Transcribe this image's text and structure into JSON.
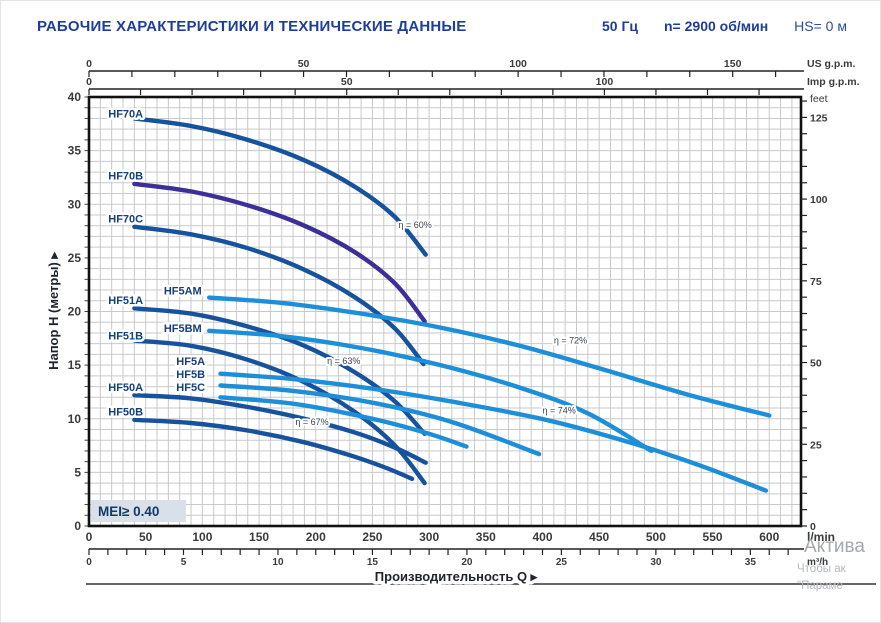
{
  "header": {
    "title": "РАБОЧИЕ ХАРАКТЕРИСТИКИ И ТЕХНИЧЕСКИЕ ДАННЫЕ",
    "frequency": "50 Гц",
    "speed": "n= 2900 об/мин",
    "suction": "HS= 0 м"
  },
  "watermark": {
    "line1": "Актива",
    "line2": "Чтобы ак",
    "line3": "\"Параме"
  },
  "chart_data": {
    "type": "line",
    "title": "",
    "xlabel": "Производительность Q",
    "ylabel": "Напор H (метры)",
    "arrow_glyph": "▸",
    "xlim": [
      0,
      628
    ],
    "ylim": [
      0,
      40
    ],
    "grid": {
      "x_step_lpm": 10,
      "y_step_m": 1
    },
    "x_primary": {
      "unit": "l/min",
      "labeled_ticks": [
        0,
        50,
        100,
        150,
        200,
        250,
        300,
        350,
        400,
        450,
        500,
        550,
        600
      ]
    },
    "y_primary": {
      "labeled_ticks": [
        0,
        5,
        10,
        15,
        20,
        25,
        30,
        35,
        40
      ]
    },
    "secondary_axes": {
      "us_gpm": {
        "unit": "US g.p.m.",
        "lpm_per_unit": 3.785,
        "labeled": [
          0,
          50,
          100,
          150
        ],
        "minor_step": 10
      },
      "imp_gpm": {
        "unit": "Imp g.p.m.",
        "lpm_per_unit": 4.546,
        "labeled": [
          0,
          50,
          100
        ],
        "minor_step": 10
      },
      "feet": {
        "unit": "feet",
        "m_per_unit": 0.3048,
        "labeled": [
          0,
          25,
          50,
          75,
          100,
          125
        ],
        "minor_step": 5
      },
      "m3_h": {
        "unit": "m³/h",
        "lpm_per_unit": 16.6667,
        "labeled": [
          0,
          5,
          10,
          15,
          20,
          25,
          30,
          35
        ],
        "minor_step": 1
      }
    },
    "mei_label": "MEI≥ 0.40",
    "colors": {
      "navy": "#16539c",
      "purple": "#3c2f97",
      "light": "#1d8fd8",
      "grid": "#c9c9c9",
      "border": "#111111",
      "tick_text": "#3b3b3b",
      "label_text": "#14407e",
      "eff_text": "#3a4254",
      "axis_title": "#20242e",
      "mei_bg": "#d9e0e9",
      "mei_text": "#123a66"
    },
    "series": [
      {
        "name": "HF70A",
        "color_key": "navy",
        "label_q": 17,
        "label_h": 38.1,
        "points": [
          [
            40,
            38.0
          ],
          [
            90,
            37.3
          ],
          [
            140,
            36.0
          ],
          [
            190,
            34.1
          ],
          [
            235,
            31.6
          ],
          [
            270,
            28.8
          ],
          [
            297,
            25.3
          ]
        ]
      },
      {
        "name": "HF70B",
        "color_key": "purple",
        "label_q": 17,
        "label_h": 32.3,
        "points": [
          [
            40,
            31.9
          ],
          [
            90,
            31.2
          ],
          [
            140,
            29.9
          ],
          [
            190,
            28.0
          ],
          [
            235,
            25.5
          ],
          [
            270,
            22.6
          ],
          [
            296,
            19.1
          ]
        ]
      },
      {
        "name": "HF70C",
        "color_key": "navy",
        "label_q": 17,
        "label_h": 28.3,
        "points": [
          [
            40,
            27.9
          ],
          [
            90,
            27.2
          ],
          [
            140,
            25.9
          ],
          [
            190,
            23.9
          ],
          [
            235,
            21.3
          ],
          [
            270,
            18.4
          ],
          [
            295,
            15.1
          ]
        ]
      },
      {
        "name": "HF5AM",
        "color_key": "light",
        "label_q": 66,
        "label_h": 21.6,
        "points": [
          [
            106,
            21.3
          ],
          [
            170,
            20.8
          ],
          [
            240,
            19.8
          ],
          [
            310,
            18.5
          ],
          [
            380,
            16.8
          ],
          [
            450,
            14.7
          ],
          [
            530,
            12.2
          ],
          [
            600,
            10.3
          ]
        ]
      },
      {
        "name": "HF51A",
        "color_key": "navy",
        "label_q": 17,
        "label_h": 20.7,
        "points": [
          [
            40,
            20.3
          ],
          [
            90,
            19.8
          ],
          [
            140,
            18.6
          ],
          [
            190,
            16.8
          ],
          [
            235,
            14.3
          ],
          [
            270,
            11.6
          ],
          [
            296,
            8.6
          ]
        ]
      },
      {
        "name": "HF5BM",
        "color_key": "light",
        "label_q": 66,
        "label_h": 18.1,
        "points": [
          [
            106,
            18.2
          ],
          [
            170,
            17.7
          ],
          [
            240,
            16.6
          ],
          [
            310,
            15.0
          ],
          [
            380,
            12.9
          ],
          [
            440,
            10.5
          ],
          [
            496,
            7.0
          ]
        ]
      },
      {
        "name": "HF51B",
        "color_key": "navy",
        "label_q": 17,
        "label_h": 17.4,
        "points": [
          [
            40,
            17.3
          ],
          [
            90,
            16.8
          ],
          [
            140,
            15.5
          ],
          [
            190,
            13.4
          ],
          [
            235,
            10.6
          ],
          [
            270,
            7.5
          ],
          [
            296,
            4.0
          ]
        ]
      },
      {
        "name": "HF5A",
        "color_key": "light",
        "label_q": 77,
        "label_h": 15.0,
        "points": [
          [
            116,
            14.2
          ],
          [
            180,
            13.7
          ],
          [
            250,
            12.8
          ],
          [
            320,
            11.6
          ],
          [
            403,
            9.9
          ],
          [
            480,
            7.7
          ],
          [
            540,
            5.6
          ],
          [
            597,
            3.3
          ]
        ]
      },
      {
        "name": "HF5B",
        "color_key": "light",
        "label_q": 77,
        "label_h": 13.8,
        "points": [
          [
            116,
            13.1
          ],
          [
            180,
            12.6
          ],
          [
            250,
            11.5
          ],
          [
            320,
            9.7
          ],
          [
            397,
            6.7
          ]
        ]
      },
      {
        "name": "HF50A",
        "color_key": "navy",
        "label_q": 17,
        "label_h": 12.6,
        "points": [
          [
            40,
            12.2
          ],
          [
            90,
            11.9
          ],
          [
            140,
            11.1
          ],
          [
            190,
            10.0
          ],
          [
            235,
            8.7
          ],
          [
            270,
            7.3
          ],
          [
            297,
            5.9
          ]
        ]
      },
      {
        "name": "HF5C",
        "color_key": "light",
        "label_q": 77,
        "label_h": 12.6,
        "points": [
          [
            116,
            12.0
          ],
          [
            180,
            11.4
          ],
          [
            250,
            10.0
          ],
          [
            300,
            8.6
          ],
          [
            333,
            7.4
          ]
        ]
      },
      {
        "name": "HF50B",
        "color_key": "navy",
        "label_q": 17,
        "label_h": 10.3,
        "points": [
          [
            40,
            9.9
          ],
          [
            90,
            9.6
          ],
          [
            140,
            8.9
          ],
          [
            190,
            7.8
          ],
          [
            230,
            6.6
          ],
          [
            260,
            5.5
          ],
          [
            285,
            4.4
          ]
        ]
      }
    ],
    "efficiency_labels": [
      {
        "text": "η = 60%",
        "q": 273,
        "h": 27.8
      },
      {
        "text": "η = 63%",
        "q": 210,
        "h": 15.1
      },
      {
        "text": "η = 67%",
        "q": 182,
        "h": 9.4
      },
      {
        "text": "η = 72%",
        "q": 410,
        "h": 17.0
      },
      {
        "text": "η = 74%",
        "q": 400,
        "h": 10.5
      }
    ]
  }
}
